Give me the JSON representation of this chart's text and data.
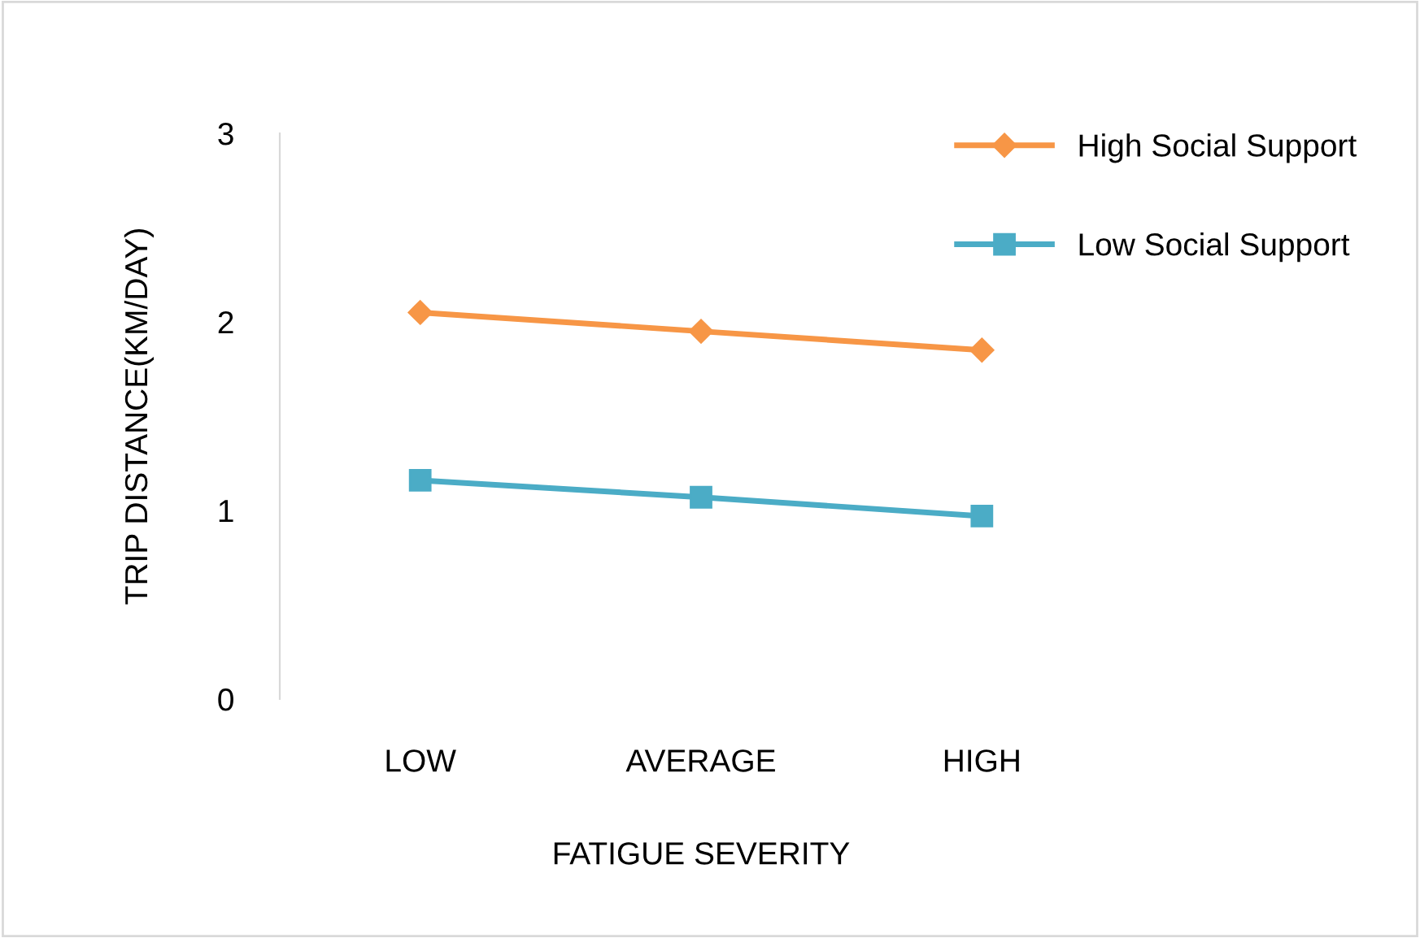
{
  "chart_data": {
    "type": "line",
    "xlabel": "FATIGUE SEVERITY",
    "ylabel": "TRIP DISTANCE(KM/DAY)",
    "categories": [
      "LOW",
      "AVERAGE",
      "HIGH"
    ],
    "series": [
      {
        "name": "High Social Support",
        "color": "#f79646",
        "values": [
          2.05,
          1.95,
          1.85
        ],
        "marker": "diamond"
      },
      {
        "name": "Low Social Support",
        "color": "#4bacc6",
        "values": [
          1.16,
          1.07,
          0.97
        ],
        "marker": "square"
      }
    ],
    "ylim": [
      0,
      3
    ],
    "yticks": [
      0,
      1,
      2,
      3
    ],
    "grid": false,
    "legend": "right",
    "line_style": "solid"
  }
}
